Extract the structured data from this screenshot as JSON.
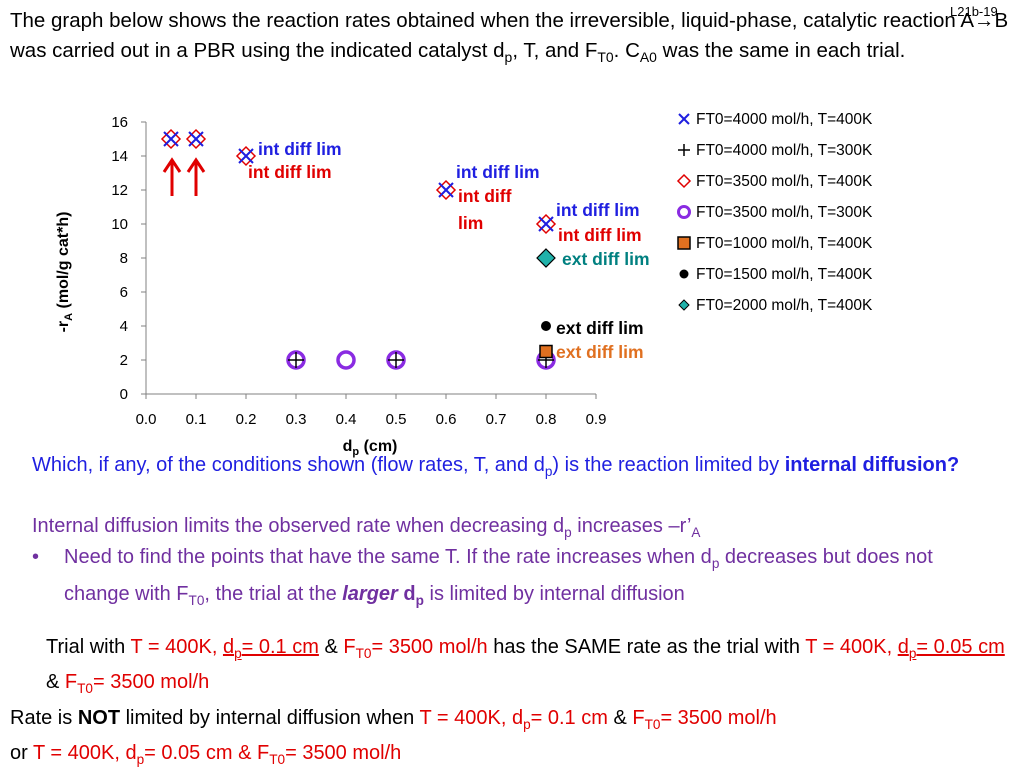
{
  "slide_id": "L21b-19",
  "intro": {
    "part1": "The graph below shows the reaction rates obtained when the irreversible, liquid-phase, catalytic reaction A→B was carried out in a PBR using the indicated catalyst d",
    "sub_p": "p",
    "part2": ", T, and F",
    "sub_t0": "T0",
    "part3": ". C",
    "sub_a0": "A0",
    "part4": " was the same in each trial."
  },
  "chart_data": {
    "type": "scatter",
    "xlabel_main": "d",
    "xlabel_sub": "p",
    "xlabel_unit": " (cm)",
    "ylabel_prefix": "-r",
    "ylabel_sub": "A",
    "ylabel_unit": " (mol/g cat*h)",
    "xlim": [
      0.0,
      0.9
    ],
    "ylim": [
      0,
      16
    ],
    "x_ticks": [
      "0.0",
      "0.1",
      "0.2",
      "0.3",
      "0.4",
      "0.5",
      "0.6",
      "0.7",
      "0.8",
      "0.9"
    ],
    "y_ticks": [
      "0",
      "2",
      "4",
      "6",
      "8",
      "10",
      "12",
      "14",
      "16"
    ],
    "grid": false,
    "legend_position": "right",
    "series": [
      {
        "name": "FT0=4000 mol/h, T=400K",
        "marker": "x",
        "color": "#1f1fe0",
        "points": [
          [
            0.05,
            15
          ],
          [
            0.1,
            15
          ],
          [
            0.2,
            14
          ],
          [
            0.6,
            12
          ],
          [
            0.8,
            10
          ]
        ]
      },
      {
        "name": "FT0=4000 mol/h, T=300K",
        "marker": "plus",
        "color": "#000000",
        "points": [
          [
            0.3,
            2
          ],
          [
            0.5,
            2
          ],
          [
            0.8,
            2
          ]
        ]
      },
      {
        "name": "FT0=3500 mol/h, T=400K",
        "marker": "diamond-open",
        "color": "#e00000",
        "points": [
          [
            0.05,
            15
          ],
          [
            0.1,
            15
          ],
          [
            0.2,
            14
          ],
          [
            0.6,
            12
          ],
          [
            0.8,
            10
          ]
        ]
      },
      {
        "name": "FT0=3500 mol/h, T=300K",
        "marker": "circle-open",
        "color": "#8a2be2",
        "points": [
          [
            0.3,
            2
          ],
          [
            0.4,
            2
          ],
          [
            0.5,
            2
          ],
          [
            0.8,
            2
          ]
        ]
      },
      {
        "name": "FT0=1000 mol/h, T=400K",
        "marker": "square",
        "color": "#e07020",
        "points": [
          [
            0.8,
            2.5
          ]
        ]
      },
      {
        "name": "FT0=1500 mol/h, T=400K",
        "marker": "circle",
        "color": "#000000",
        "points": [
          [
            0.8,
            4
          ]
        ]
      },
      {
        "name": "FT0=2000 mol/h, T=400K",
        "marker": "diamond",
        "color": "#20b2aa",
        "points": [
          [
            0.8,
            8
          ]
        ]
      }
    ],
    "annotations": [
      {
        "text": "int diff lim",
        "color": "#1f1fe0"
      },
      {
        "text": "int diff lim",
        "color": "#e00000"
      },
      {
        "text": "int diff lim",
        "color": "#1f1fe0"
      },
      {
        "text": "int diff",
        "color": "#e00000"
      },
      {
        "text": "lim",
        "color": "#e00000"
      },
      {
        "text": "int diff lim",
        "color": "#1f1fe0"
      },
      {
        "text": "int diff lim",
        "color": "#e00000"
      },
      {
        "text": "ext diff lim",
        "color": "#008080"
      },
      {
        "text": "ext diff lim",
        "color": "#000000"
      },
      {
        "text": "ext diff lim",
        "color": "#e07020"
      }
    ]
  },
  "question": {
    "part1": "Which, if any, of the conditions shown (flow rates, T, and d",
    "sub_p": "p",
    "part2": ") is the reaction limited by ",
    "bold": "internal diffusion?"
  },
  "explain": {
    "part1": "Internal diffusion limits the observed rate when decreasing d",
    "sub_p": "p",
    "part2": " increases –r’",
    "sub_a": "A"
  },
  "bullet": {
    "dot": "•",
    "part1": "Need to find the points that have the same T. If the rate increases when d",
    "sub_p": "p",
    "part2": " decreases but does not change with F",
    "sub_t0": "T0",
    "part3": ", the trial at the ",
    "larger": "larger",
    "dp_bold": "d",
    "dp_sub": "p",
    "part4": " is limited by internal diffusion"
  },
  "trial": {
    "t1": "Trial with ",
    "t2": "T = 400K, ",
    "t3": "d",
    "t3sub": "p",
    "t4": "= 0.1 cm",
    "t5": " & ",
    "t6": "F",
    "t6sub": "T0",
    "t7": "= 3500 mol/h",
    "t8": " has the SAME rate as the trial with ",
    "t9": "T = 400K, ",
    "t10": "d",
    "t10sub": "p",
    "t11": "= 0.05 cm",
    "t12": " & ",
    "t13": "F",
    "t13sub": "T0",
    "t14": "= 3500 mol/h"
  },
  "conclusion": {
    "c1": "Rate is ",
    "c2": "NOT",
    "c3": " limited by internal diffusion when ",
    "c4": "T = 400K, d",
    "c4sub": "p",
    "c5": "= 0.1 cm",
    "c6": " & ",
    "c7": "F",
    "c7sub": "T0",
    "c8": "= 3500 mol/h",
    "c9": "or ",
    "c10": "T = 400K, d",
    "c10sub": "p",
    "c11": "= 0.05 cm & F",
    "c11sub": "T0",
    "c12": "= 3500 mol/h"
  }
}
